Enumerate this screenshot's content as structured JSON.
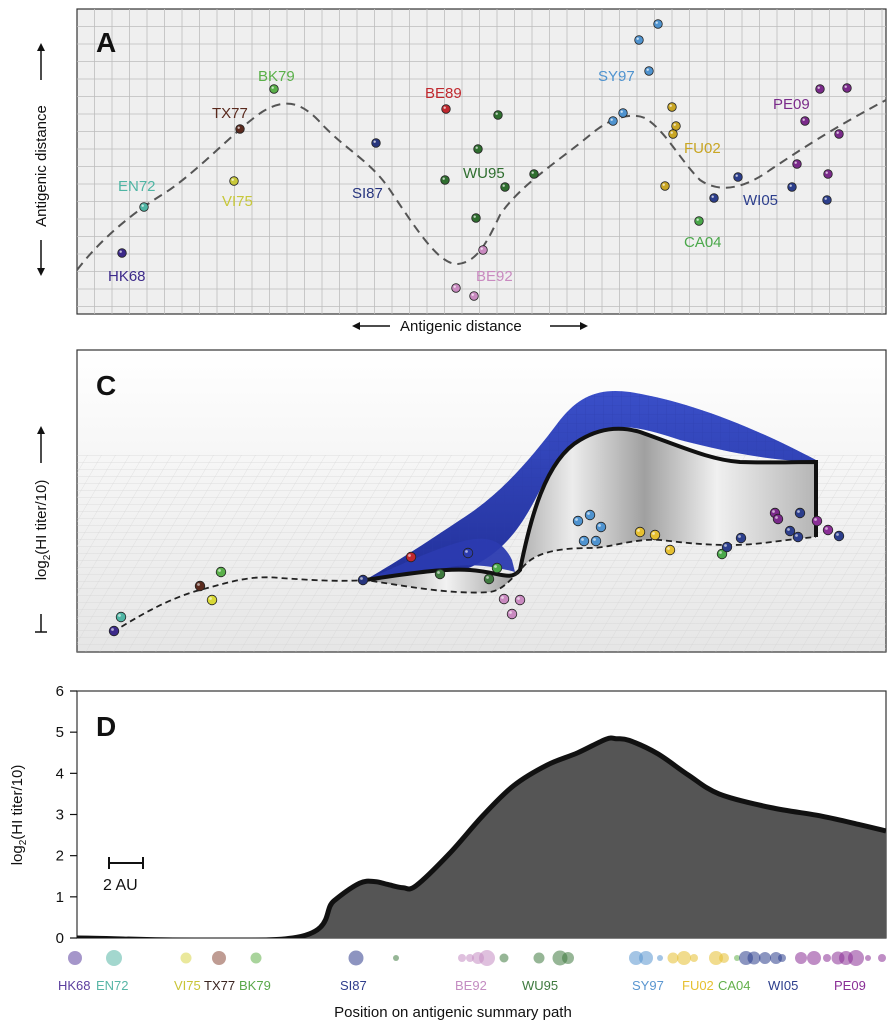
{
  "chart_data": [
    {
      "panel": "A",
      "type": "scatter",
      "xlabel": "Antigenic distance",
      "ylabel": "Antigenic distance",
      "grid": true,
      "strain_labels": [
        {
          "text": "HK68",
          "color": "#3d2a8a"
        },
        {
          "text": "EN72",
          "color": "#4fb5a4"
        },
        {
          "text": "VI75",
          "color": "#c8c83a"
        },
        {
          "text": "TX77",
          "color": "#5a2a1e"
        },
        {
          "text": "BK79",
          "color": "#5ab04a"
        },
        {
          "text": "SI87",
          "color": "#27357e"
        },
        {
          "text": "BE89",
          "color": "#c0282e"
        },
        {
          "text": "BE92",
          "color": "#c98ac0"
        },
        {
          "text": "WU95",
          "color": "#2f6e2f"
        },
        {
          "text": "SY97",
          "color": "#4f93cf"
        },
        {
          "text": "FU02",
          "color": "#c9a624"
        },
        {
          "text": "CA04",
          "color": "#4aa84a"
        },
        {
          "text": "WI05",
          "color": "#2c3e8c"
        },
        {
          "text": "PE09",
          "color": "#7a2a8a"
        }
      ]
    },
    {
      "panel": "C",
      "type": "area",
      "ylabel": "log2(HI titer/10)"
    },
    {
      "panel": "D",
      "type": "area",
      "xlabel": "Position on antigenic summary path",
      "ylabel": "log2(HI titer/10)",
      "ylim": [
        0,
        6
      ],
      "yticks": [
        "0",
        "1",
        "2",
        "3",
        "4",
        "5",
        "6"
      ],
      "scale_bar": "2 AU",
      "series": [
        {
          "x": [
            0,
            8.4,
            10.0,
            11.0,
            11.6,
            12.1,
            12.7,
            13.2,
            14.5,
            15.8,
            17.0,
            18.3,
            19.5,
            20.6,
            21.0,
            21.5,
            22.6,
            23.8,
            25.0,
            27.0,
            29.0,
            30.5,
            31.5
          ],
          "values": [
            0,
            0,
            0.9,
            1.33,
            1.37,
            1.3,
            1.22,
            1.27,
            2.05,
            2.97,
            3.7,
            4.2,
            4.5,
            4.83,
            4.84,
            4.8,
            4.48,
            3.96,
            3.5,
            3.17,
            2.96,
            2.75,
            2.6
          ]
        }
      ],
      "xlim": [
        0,
        31.5
      ],
      "category_labels": [
        {
          "text": "HK68",
          "color": "#5b3f9e"
        },
        {
          "text": "EN72",
          "color": "#57b6a6"
        },
        {
          "text": "VI75",
          "color": "#c9c436"
        },
        {
          "text": "TX77",
          "color": "#3a2420"
        },
        {
          "text": "BK79",
          "color": "#5aa84a"
        },
        {
          "text": "SI87",
          "color": "#2f3d8c"
        },
        {
          "text": "BE92",
          "color": "#c48dc2"
        },
        {
          "text": "WU95",
          "color": "#3f7a3f"
        },
        {
          "text": "SY97",
          "color": "#5a96d0"
        },
        {
          "text": "FU02",
          "color": "#e6c031"
        },
        {
          "text": "CA04",
          "color": "#63b04a"
        },
        {
          "text": "WI05",
          "color": "#2c3e8c"
        },
        {
          "text": "PE09",
          "color": "#8a2f96"
        }
      ]
    }
  ]
}
